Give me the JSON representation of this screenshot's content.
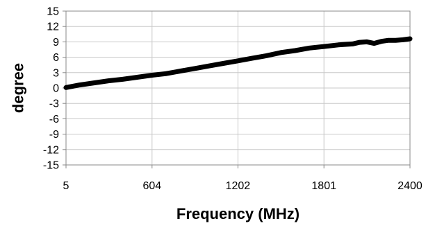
{
  "chart_data": {
    "type": "line",
    "title": "",
    "xlabel": "Frequency (MHz)",
    "ylabel": "degree",
    "xlim": [
      5,
      2400
    ],
    "ylim": [
      -15,
      15
    ],
    "x_ticks": [
      5,
      604,
      1202,
      1801,
      2400
    ],
    "x_tick_labels": [
      "5",
      "604",
      "1202",
      "1801",
      "2400"
    ],
    "y_ticks": [
      -15,
      -12,
      -9,
      -6,
      -3,
      0,
      3,
      6,
      9,
      12,
      15
    ],
    "y_tick_labels": [
      "-15",
      "-12",
      "-9",
      "-6",
      "-3",
      "0",
      "3",
      "6",
      "9",
      "12",
      "15"
    ],
    "grid": true,
    "legend": "none",
    "series": [
      {
        "color": "#000000",
        "x": [
          5,
          100,
          200,
          300,
          400,
          500,
          604,
          700,
          800,
          900,
          1000,
          1100,
          1202,
          1300,
          1400,
          1500,
          1600,
          1700,
          1801,
          1900,
          2000,
          2050,
          2100,
          2150,
          2200,
          2250,
          2300,
          2350,
          2400
        ],
        "y": [
          0.1,
          0.6,
          1.0,
          1.4,
          1.7,
          2.1,
          2.5,
          2.8,
          3.3,
          3.8,
          4.3,
          4.8,
          5.3,
          5.8,
          6.3,
          6.9,
          7.3,
          7.8,
          8.1,
          8.4,
          8.6,
          8.9,
          9.0,
          8.7,
          9.1,
          9.3,
          9.3,
          9.4,
          9.6
        ]
      }
    ]
  }
}
